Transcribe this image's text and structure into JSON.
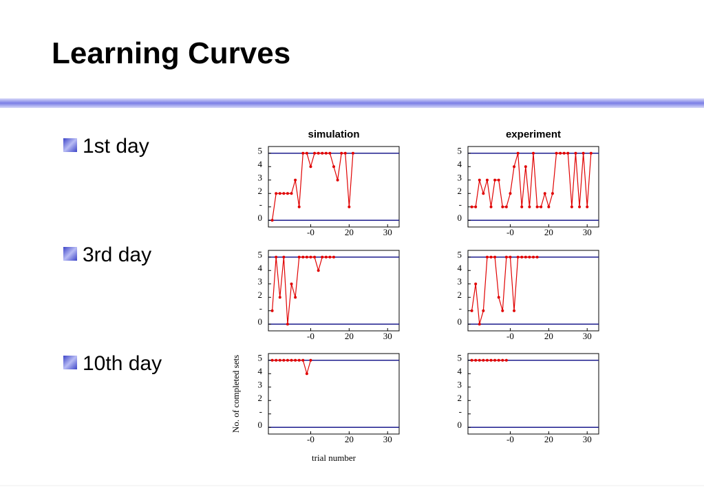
{
  "title": "Learning Curves",
  "bullets": [
    "1st day",
    "3rd day",
    "10th day"
  ],
  "chart_data": [
    {
      "type": "line",
      "title": "simulation",
      "color": "#e00000",
      "reference_lines": [
        0,
        5
      ],
      "x": [
        0,
        1,
        2,
        3,
        4,
        5,
        6,
        7,
        8,
        9,
        10,
        11,
        12,
        13,
        14,
        15,
        16,
        17,
        18,
        19,
        20,
        21
      ],
      "values": [
        0,
        2,
        2,
        2,
        2,
        2,
        3,
        1,
        5,
        5,
        4,
        5,
        5,
        5,
        5,
        5,
        4,
        3,
        5,
        5,
        1,
        5
      ],
      "xlim": [
        -1,
        33
      ],
      "xticks": [
        {
          "value": 10,
          "label": "-0"
        },
        20,
        30
      ],
      "ylim": [
        -0.5,
        5.5
      ],
      "yticks": [
        0,
        {
          "value": 1,
          "label": "-"
        },
        2,
        3,
        4,
        5
      ]
    },
    {
      "type": "line",
      "title": "experiment",
      "color": "#e00000",
      "reference_lines": [
        0,
        5
      ],
      "x": [
        0,
        1,
        2,
        3,
        4,
        5,
        6,
        7,
        8,
        9,
        10,
        11,
        12,
        13,
        14,
        15,
        16,
        17,
        18,
        19,
        20,
        21,
        22,
        23,
        24,
        25,
        26,
        27,
        28,
        29,
        30,
        31
      ],
      "values": [
        1,
        1,
        3,
        2,
        3,
        1,
        3,
        3,
        1,
        1,
        2,
        4,
        5,
        1,
        4,
        1,
        5,
        1,
        1,
        2,
        1,
        2,
        5,
        5,
        5,
        5,
        1,
        5,
        1,
        5,
        1,
        5
      ],
      "xlim": [
        -1,
        33
      ],
      "xticks": [
        {
          "value": 10,
          "label": "-0"
        },
        20,
        30
      ],
      "ylim": [
        -0.5,
        5.5
      ],
      "yticks": [
        0,
        {
          "value": 1,
          "label": "-"
        },
        2,
        3,
        4,
        5
      ]
    },
    {
      "type": "line",
      "color": "#e00000",
      "reference_lines": [
        0,
        5
      ],
      "x": [
        0,
        1,
        2,
        3,
        4,
        5,
        6,
        7,
        8,
        9,
        10,
        11,
        12,
        13,
        14,
        15,
        16
      ],
      "values": [
        1,
        5,
        2,
        5,
        0,
        3,
        2,
        5,
        5,
        5,
        5,
        5,
        4,
        5,
        5,
        5,
        5
      ],
      "xlim": [
        -1,
        33
      ],
      "xticks": [
        {
          "value": 10,
          "label": "-0"
        },
        20,
        30
      ],
      "ylim": [
        -0.5,
        5.5
      ],
      "yticks": [
        0,
        {
          "value": 1,
          "label": "-"
        },
        2,
        3,
        4,
        5
      ]
    },
    {
      "type": "line",
      "color": "#e00000",
      "reference_lines": [
        0,
        5
      ],
      "x": [
        0,
        1,
        2,
        3,
        4,
        5,
        6,
        7,
        8,
        9,
        10,
        11,
        12,
        13,
        14,
        15,
        16,
        17
      ],
      "values": [
        1,
        3,
        0,
        1,
        5,
        5,
        5,
        2,
        1,
        5,
        5,
        1,
        5,
        5,
        5,
        5,
        5,
        5
      ],
      "xlim": [
        -1,
        33
      ],
      "xticks": [
        {
          "value": 10,
          "label": "-0"
        },
        20,
        30
      ],
      "ylim": [
        -0.5,
        5.5
      ],
      "yticks": [
        0,
        {
          "value": 1,
          "label": "-"
        },
        2,
        3,
        4,
        5
      ]
    },
    {
      "type": "line",
      "color": "#e00000",
      "reference_lines": [
        0,
        5
      ],
      "ylabel": "No. of completed sets",
      "xlabel": "trial number",
      "x": [
        0,
        1,
        2,
        3,
        4,
        5,
        6,
        7,
        8,
        9,
        10
      ],
      "values": [
        5,
        5,
        5,
        5,
        5,
        5,
        5,
        5,
        5,
        4,
        5
      ],
      "xlim": [
        -1,
        33
      ],
      "xticks": [
        {
          "value": 10,
          "label": "-0"
        },
        20,
        30
      ],
      "ylim": [
        -0.5,
        5.5
      ],
      "yticks": [
        0,
        {
          "value": 1,
          "label": "-"
        },
        2,
        3,
        4,
        5
      ]
    },
    {
      "type": "line",
      "color": "#e00000",
      "reference_lines": [
        0,
        5
      ],
      "x": [
        0,
        1,
        2,
        3,
        4,
        5,
        6,
        7,
        8,
        9
      ],
      "values": [
        5,
        5,
        5,
        5,
        5,
        5,
        5,
        5,
        5,
        5
      ],
      "xlim": [
        -1,
        33
      ],
      "xticks": [
        {
          "value": 10,
          "label": "-0"
        },
        20,
        30
      ],
      "ylim": [
        -0.5,
        5.5
      ],
      "yticks": [
        0,
        {
          "value": 1,
          "label": "-"
        },
        2,
        3,
        4,
        5
      ]
    }
  ]
}
